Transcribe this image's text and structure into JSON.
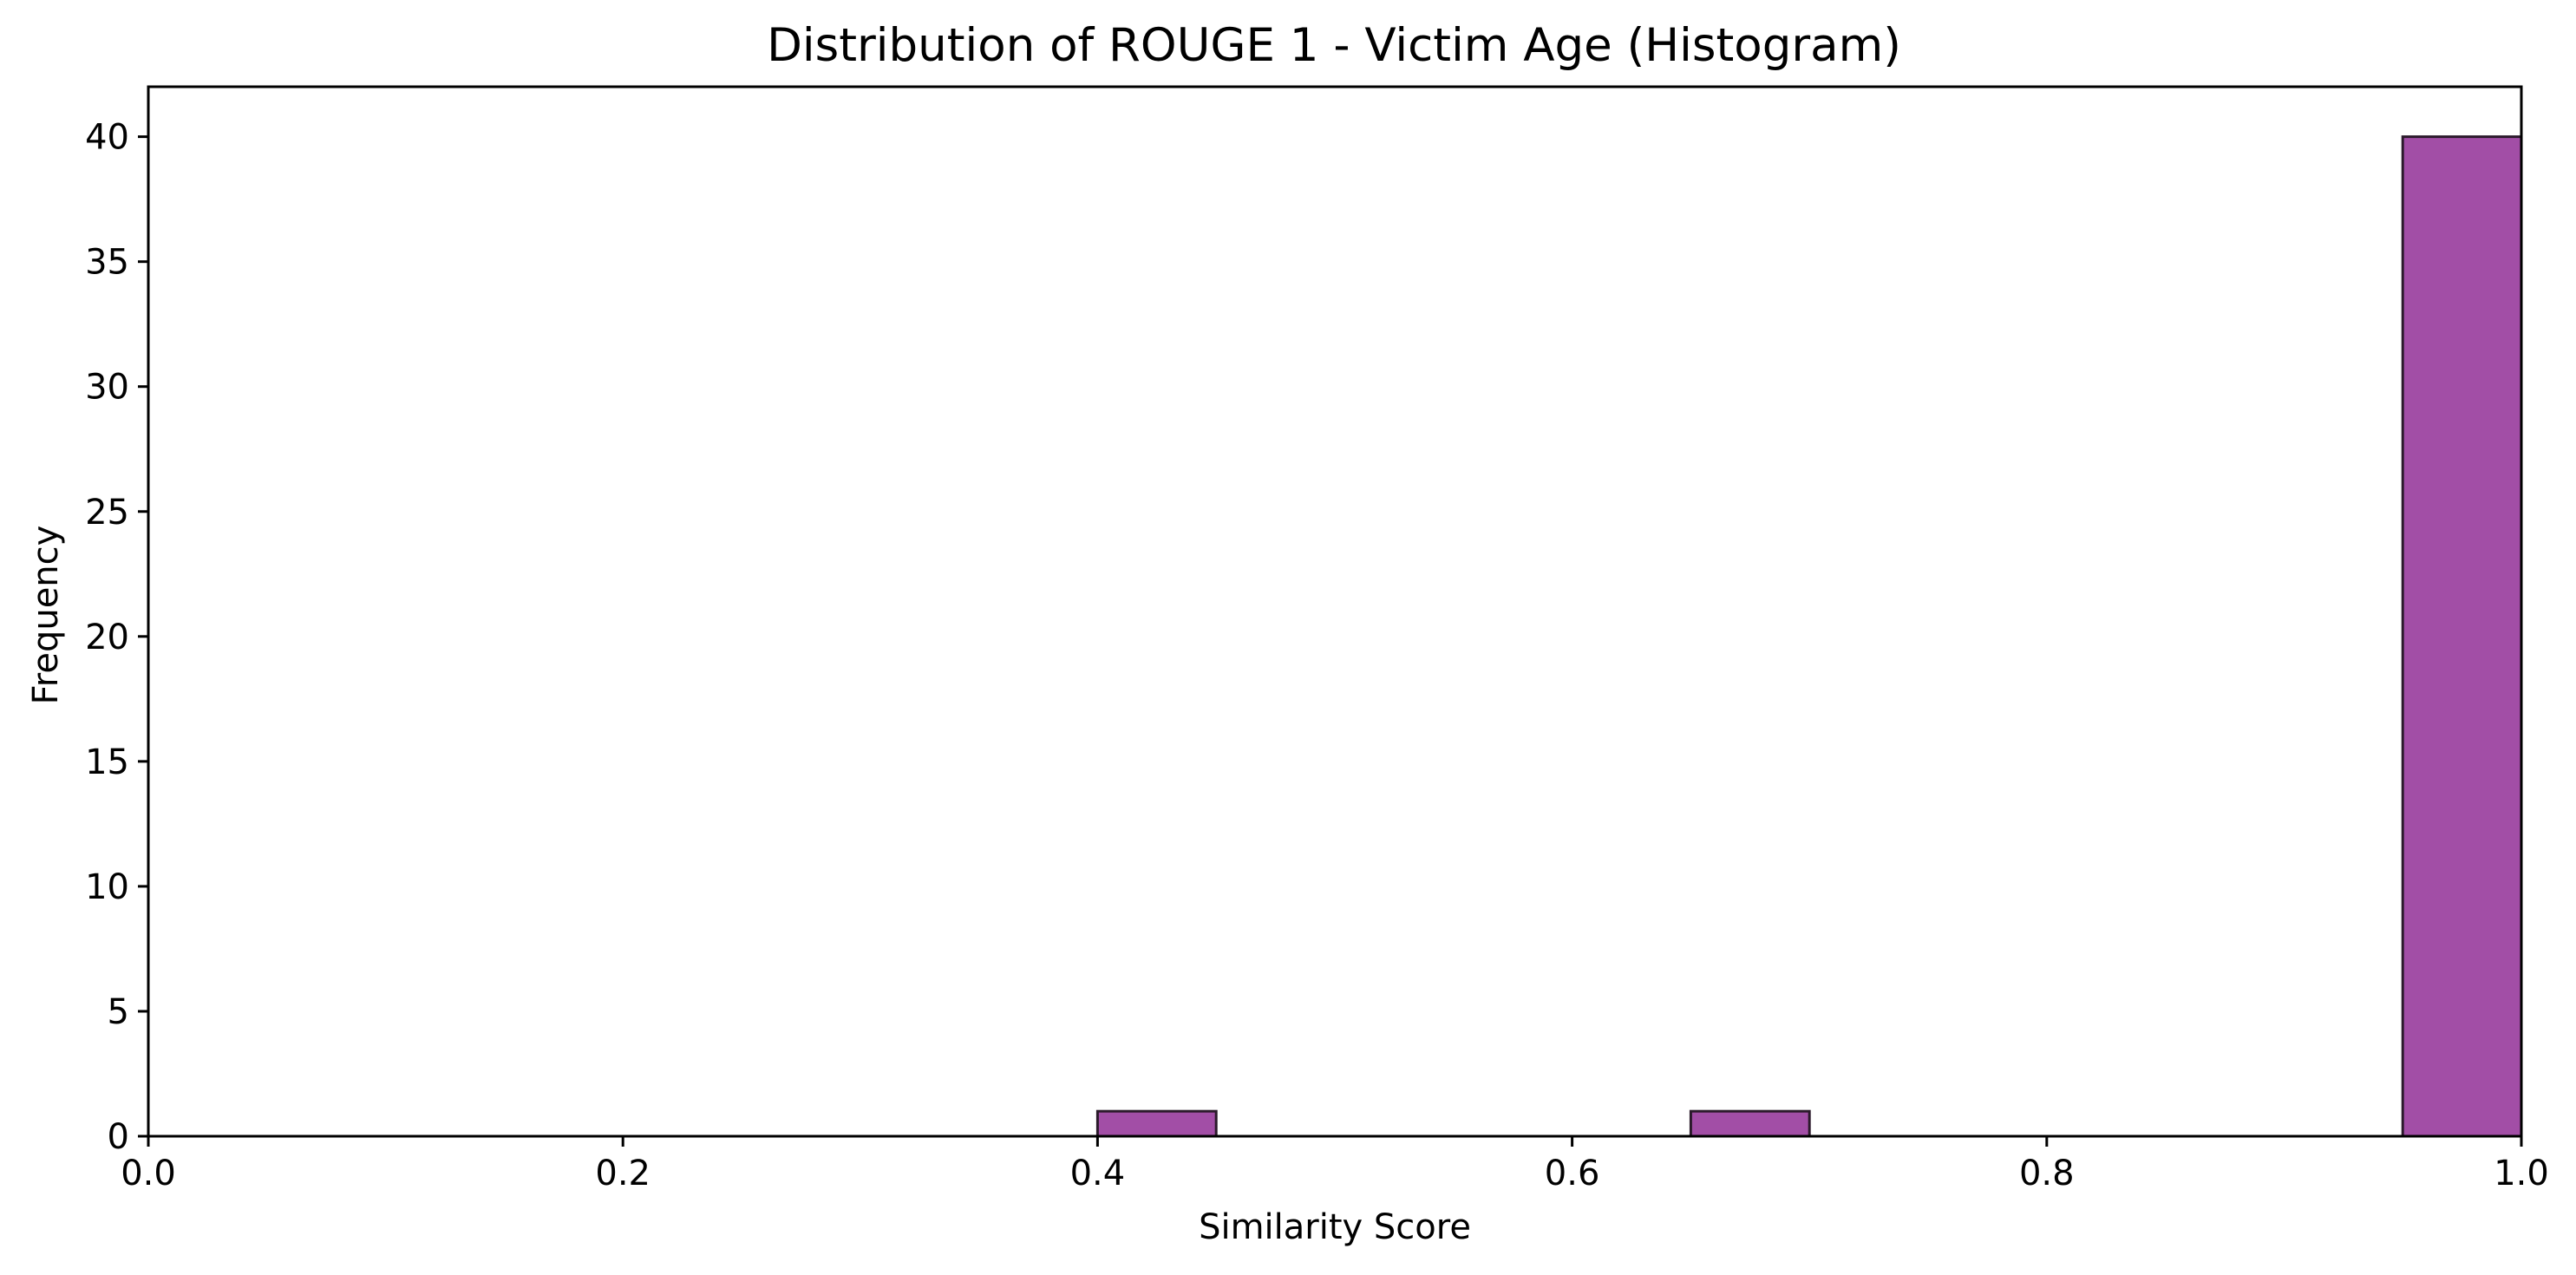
{
  "chart_data": {
    "type": "bar",
    "title": "Distribution of ROUGE 1 - Victim Age (Histogram)",
    "xlabel": "Similarity Score",
    "ylabel": "Frequency",
    "xlim": [
      0.0,
      1.0
    ],
    "ylim": [
      0,
      42
    ],
    "xticks": [
      "0.0",
      "0.2",
      "0.4",
      "0.6",
      "0.8",
      "1.0"
    ],
    "yticks": [
      "0",
      "5",
      "10",
      "15",
      "20",
      "25",
      "30",
      "35",
      "40"
    ],
    "bins": [
      {
        "start": 0.4,
        "end": 0.45,
        "count": 1
      },
      {
        "start": 0.65,
        "end": 0.7,
        "count": 1
      },
      {
        "start": 0.95,
        "end": 1.0,
        "count": 40
      }
    ],
    "bar_color": "#a24ea6",
    "grid": false
  }
}
